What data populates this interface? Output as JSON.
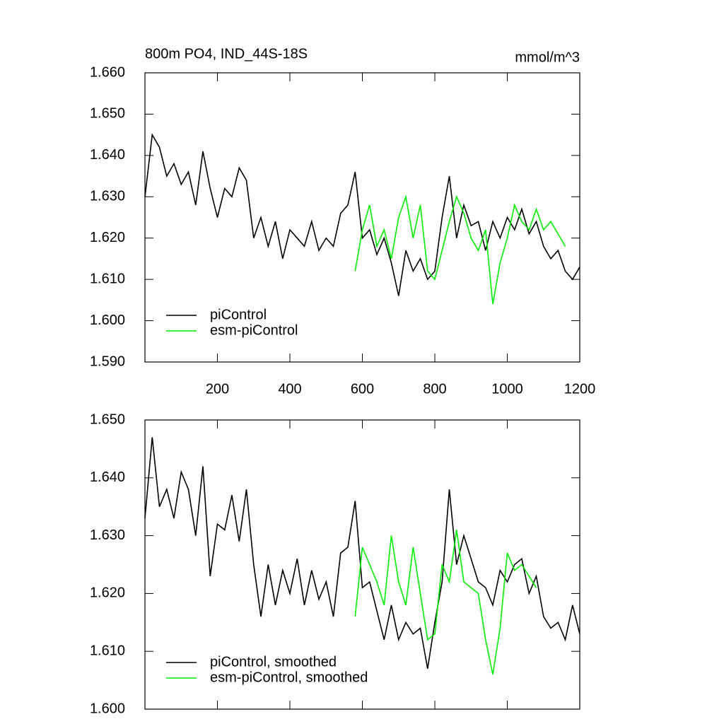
{
  "chart_data": [
    {
      "type": "line",
      "title": "800m PO4, IND_44S-18S",
      "units": "mmol/m^3",
      "xlim": [
        0,
        1200
      ],
      "xticks": [
        200,
        400,
        600,
        800,
        1000,
        1200
      ],
      "xtick_labels": true,
      "ylim": [
        1.59,
        1.66
      ],
      "yticks": [
        {
          "value": 1.59,
          "label": "1.590"
        },
        {
          "value": 1.6,
          "label": "1.600"
        },
        {
          "value": 1.61,
          "label": "1.610"
        },
        {
          "value": 1.62,
          "label": "1.620"
        },
        {
          "value": 1.63,
          "label": "1.630"
        },
        {
          "value": 1.64,
          "label": "1.640"
        },
        {
          "value": 1.65,
          "label": "1.650"
        },
        {
          "value": 1.66,
          "label": "1.660"
        }
      ],
      "legend": "lower left",
      "series": [
        {
          "name": "piControl",
          "color": "#000000",
          "x": [
            0,
            20,
            40,
            60,
            80,
            100,
            120,
            140,
            160,
            180,
            200,
            220,
            240,
            260,
            280,
            300,
            320,
            340,
            360,
            380,
            400,
            420,
            440,
            460,
            480,
            500,
            520,
            540,
            560,
            580,
            600,
            620,
            640,
            660,
            680,
            700,
            720,
            740,
            760,
            780,
            800,
            820,
            840,
            860,
            880,
            900,
            920,
            940,
            960,
            980,
            1000,
            1020,
            1040,
            1060,
            1080,
            1100,
            1120,
            1140,
            1160,
            1180,
            1200
          ],
          "values": [
            1.63,
            1.645,
            1.642,
            1.635,
            1.638,
            1.633,
            1.636,
            1.628,
            1.641,
            1.632,
            1.625,
            1.632,
            1.63,
            1.637,
            1.634,
            1.62,
            1.625,
            1.618,
            1.624,
            1.615,
            1.622,
            1.62,
            1.618,
            1.624,
            1.617,
            1.62,
            1.618,
            1.626,
            1.628,
            1.636,
            1.62,
            1.622,
            1.616,
            1.62,
            1.614,
            1.606,
            1.617,
            1.612,
            1.615,
            1.61,
            1.612,
            1.625,
            1.635,
            1.62,
            1.628,
            1.623,
            1.624,
            1.617,
            1.624,
            1.62,
            1.625,
            1.622,
            1.627,
            1.621,
            1.624,
            1.618,
            1.615,
            1.617,
            1.612,
            1.61,
            1.613
          ]
        },
        {
          "name": "esm-piControl",
          "color": "#00ee00",
          "x": [
            580,
            600,
            620,
            640,
            660,
            680,
            700,
            720,
            740,
            760,
            780,
            800,
            820,
            840,
            860,
            880,
            900,
            920,
            940,
            960,
            980,
            1000,
            1020,
            1040,
            1060,
            1080,
            1100,
            1120,
            1140,
            1160
          ],
          "values": [
            1.612,
            1.622,
            1.628,
            1.618,
            1.622,
            1.615,
            1.625,
            1.63,
            1.62,
            1.628,
            1.612,
            1.61,
            1.617,
            1.624,
            1.63,
            1.626,
            1.62,
            1.617,
            1.622,
            1.604,
            1.614,
            1.62,
            1.628,
            1.624,
            1.622,
            1.627,
            1.622,
            1.624,
            1.621,
            1.618
          ]
        }
      ]
    },
    {
      "type": "line",
      "xlim": [
        0,
        1200
      ],
      "xticks": [
        200,
        400,
        600,
        800,
        1000,
        1200
      ],
      "xtick_labels": false,
      "ylim": [
        1.6,
        1.65
      ],
      "yticks": [
        {
          "value": 1.6,
          "label": "1.600"
        },
        {
          "value": 1.61,
          "label": "1.610"
        },
        {
          "value": 1.62,
          "label": "1.620"
        },
        {
          "value": 1.63,
          "label": "1.630"
        },
        {
          "value": 1.64,
          "label": "1.640"
        },
        {
          "value": 1.65,
          "label": "1.650"
        }
      ],
      "legend": "lower left",
      "series": [
        {
          "name": "piControl, smoothed",
          "color": "#000000",
          "x": [
            0,
            20,
            40,
            60,
            80,
            100,
            120,
            140,
            160,
            180,
            200,
            220,
            240,
            260,
            280,
            300,
            320,
            340,
            360,
            380,
            400,
            420,
            440,
            460,
            480,
            500,
            520,
            540,
            560,
            580,
            600,
            620,
            640,
            660,
            680,
            700,
            720,
            740,
            760,
            780,
            800,
            820,
            840,
            860,
            880,
            900,
            920,
            940,
            960,
            980,
            1000,
            1020,
            1040,
            1060,
            1080,
            1100,
            1120,
            1140,
            1160,
            1180,
            1200
          ],
          "values": [
            1.633,
            1.647,
            1.635,
            1.638,
            1.633,
            1.641,
            1.638,
            1.63,
            1.642,
            1.623,
            1.632,
            1.631,
            1.637,
            1.629,
            1.638,
            1.625,
            1.616,
            1.625,
            1.618,
            1.624,
            1.62,
            1.626,
            1.618,
            1.624,
            1.619,
            1.622,
            1.616,
            1.627,
            1.628,
            1.636,
            1.621,
            1.622,
            1.617,
            1.612,
            1.618,
            1.612,
            1.615,
            1.613,
            1.614,
            1.607,
            1.615,
            1.622,
            1.638,
            1.625,
            1.63,
            1.626,
            1.622,
            1.621,
            1.618,
            1.624,
            1.622,
            1.625,
            1.626,
            1.62,
            1.623,
            1.616,
            1.614,
            1.615,
            1.612,
            1.618,
            1.613
          ]
        },
        {
          "name": "esm-piControl, smoothed",
          "color": "#00ee00",
          "x": [
            580,
            600,
            620,
            640,
            660,
            680,
            700,
            720,
            740,
            760,
            780,
            800,
            820,
            840,
            860,
            880,
            900,
            920,
            940,
            960,
            980,
            1000,
            1020,
            1040,
            1060,
            1080
          ],
          "values": [
            1.616,
            1.628,
            1.625,
            1.622,
            1.618,
            1.63,
            1.622,
            1.618,
            1.628,
            1.62,
            1.612,
            1.613,
            1.625,
            1.622,
            1.631,
            1.622,
            1.621,
            1.62,
            1.612,
            1.606,
            1.614,
            1.627,
            1.624,
            1.625,
            1.623,
            1.621
          ]
        }
      ]
    }
  ]
}
